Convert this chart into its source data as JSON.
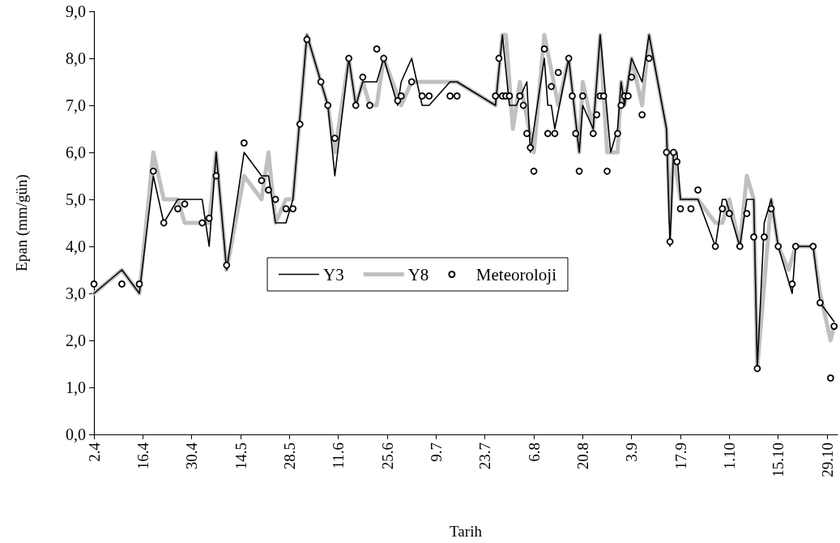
{
  "chart_data": {
    "type": "line",
    "xlabel": "Tarih",
    "ylabel": "Epan (mm/gün)",
    "xlim": [
      "--04-02",
      "--11-01"
    ],
    "xticks": [
      {
        "value": "--04-02",
        "label": "2.4"
      },
      {
        "value": "--04-16",
        "label": "16.4"
      },
      {
        "value": "--04-30",
        "label": "30.4"
      },
      {
        "value": "--05-14",
        "label": "14.5"
      },
      {
        "value": "--05-28",
        "label": "28.5"
      },
      {
        "value": "--06-11",
        "label": "11.6"
      },
      {
        "value": "--06-25",
        "label": "25.6"
      },
      {
        "value": "--07-09",
        "label": "9.7"
      },
      {
        "value": "--07-23",
        "label": "23.7"
      },
      {
        "value": "--08-06",
        "label": "6.8"
      },
      {
        "value": "--08-20",
        "label": "20.8"
      },
      {
        "value": "--09-03",
        "label": "3.9"
      },
      {
        "value": "--09-17",
        "label": "17.9"
      },
      {
        "value": "--10-01",
        "label": "1.10"
      },
      {
        "value": "--10-15",
        "label": "15.10"
      },
      {
        "value": "--10-29",
        "label": "29.10"
      }
    ],
    "ylim": [
      0,
      9
    ],
    "yticks": [
      {
        "value": 0,
        "label": "0,0"
      },
      {
        "value": 1,
        "label": "1,0"
      },
      {
        "value": 2,
        "label": "2,0"
      },
      {
        "value": 3,
        "label": "3,0"
      },
      {
        "value": 4,
        "label": "4,0"
      },
      {
        "value": 5,
        "label": "5,0"
      },
      {
        "value": 6,
        "label": "6,0"
      },
      {
        "value": 7,
        "label": "7,0"
      },
      {
        "value": 8,
        "label": "8,0"
      },
      {
        "value": 9,
        "label": "9,0"
      }
    ],
    "grid": false,
    "legend": "center",
    "series": [
      {
        "name": "Y3",
        "color": "#000000",
        "x": [
          "--04-02",
          "--04-10",
          "--04-15",
          "--04-19",
          "--04-22",
          "--04-26",
          "--05-03",
          "--05-05",
          "--05-07",
          "--05-10",
          "--05-15",
          "--05-20",
          "--05-22",
          "--05-24",
          "--05-27",
          "--05-29",
          "--06-02",
          "--06-06",
          "--06-08",
          "--06-10",
          "--06-14",
          "--06-16",
          "--06-18",
          "--06-22",
          "--06-24",
          "--06-28",
          "--06-29",
          "--07-02",
          "--07-05",
          "--07-07",
          "--07-13",
          "--07-15",
          "--07-26",
          "--07-28",
          "--07-30",
          "--08-01",
          "--08-04",
          "--08-05",
          "--08-09",
          "--08-10",
          "--08-11",
          "--08-12",
          "--08-16",
          "--08-19",
          "--08-20",
          "--08-23",
          "--08-25",
          "--08-28",
          "--08-30",
          "--08-31",
          "--09-01",
          "--09-03",
          "--09-06",
          "--09-08",
          "--09-13",
          "--09-14",
          "--09-15",
          "--09-16",
          "--09-17",
          "--09-22",
          "--09-27",
          "--09-29",
          "--09-30",
          "--10-04",
          "--10-06",
          "--10-08",
          "--10-09",
          "--10-11",
          "--10-13",
          "--10-15",
          "--10-19",
          "--10-20",
          "--10-25",
          "--10-27",
          "--10-31"
        ],
        "values": [
          3.0,
          3.5,
          3.0,
          5.5,
          4.5,
          5.0,
          5.0,
          4.0,
          6.0,
          3.5,
          6.0,
          5.5,
          5.5,
          4.5,
          4.5,
          5.0,
          8.5,
          7.5,
          7.0,
          5.5,
          8.0,
          7.0,
          7.5,
          7.5,
          8.0,
          7.0,
          7.5,
          8.0,
          7.0,
          7.0,
          7.5,
          7.5,
          7.0,
          8.5,
          7.0,
          7.0,
          7.5,
          6.0,
          8.0,
          7.0,
          7.0,
          6.5,
          8.0,
          6.0,
          7.0,
          6.5,
          8.5,
          6.0,
          6.5,
          7.5,
          7.0,
          8.0,
          7.5,
          8.5,
          6.5,
          4.0,
          6.0,
          6.0,
          5.0,
          5.0,
          4.0,
          5.0,
          5.0,
          4.0,
          5.0,
          5.0,
          1.4,
          4.5,
          5.0,
          4.0,
          3.0,
          4.0,
          4.0,
          2.8,
          2.4
        ]
      },
      {
        "name": "Y8",
        "color": "#c0c0c0",
        "x": [
          "--04-02",
          "--04-10",
          "--04-15",
          "--04-19",
          "--04-22",
          "--04-26",
          "--04-28",
          "--05-03",
          "--05-05",
          "--05-07",
          "--05-10",
          "--05-15",
          "--05-20",
          "--05-22",
          "--05-24",
          "--05-27",
          "--05-29",
          "--06-02",
          "--06-06",
          "--06-08",
          "--06-10",
          "--06-14",
          "--06-16",
          "--06-18",
          "--06-20",
          "--06-22",
          "--06-24",
          "--06-29",
          "--07-02",
          "--07-15",
          "--07-26",
          "--07-28",
          "--07-29",
          "--07-31",
          "--08-02",
          "--08-06",
          "--08-09",
          "--08-13",
          "--08-16",
          "--08-19",
          "--08-20",
          "--08-23",
          "--08-25",
          "--08-27",
          "--08-30",
          "--08-31",
          "--09-01",
          "--09-03",
          "--09-06",
          "--09-08",
          "--09-13",
          "--09-14",
          "--09-15",
          "--09-17",
          "--09-22",
          "--09-27",
          "--09-29",
          "--10-01",
          "--10-04",
          "--10-06",
          "--10-08",
          "--10-09",
          "--10-13",
          "--10-15",
          "--10-18",
          "--10-20",
          "--10-25",
          "--10-27",
          "--10-30",
          "--10-31"
        ],
        "values": [
          3.0,
          3.5,
          3.0,
          6.0,
          5.0,
          5.0,
          4.5,
          4.5,
          4.5,
          6.0,
          3.5,
          5.5,
          5.0,
          6.0,
          4.5,
          5.0,
          5.0,
          8.5,
          7.5,
          7.0,
          6.0,
          8.0,
          7.0,
          7.5,
          7.0,
          7.0,
          8.0,
          7.0,
          7.5,
          7.5,
          7.0,
          8.5,
          8.5,
          6.5,
          7.5,
          6.0,
          8.5,
          7.0,
          8.0,
          6.0,
          7.5,
          6.5,
          8.5,
          6.0,
          6.0,
          7.5,
          7.0,
          8.0,
          7.0,
          8.5,
          6.5,
          4.5,
          6.0,
          5.0,
          5.0,
          4.5,
          4.5,
          5.0,
          4.0,
          5.5,
          5.0,
          1.4,
          5.0,
          4.0,
          3.5,
          4.0,
          4.0,
          3.0,
          2.0,
          2.3
        ]
      },
      {
        "name": "Meteoroloji",
        "type": "scatter",
        "marker": "circle",
        "color": "#000000",
        "x": [
          "--04-02",
          "--04-10",
          "--04-15",
          "--04-19",
          "--04-22",
          "--04-26",
          "--04-28",
          "--05-03",
          "--05-05",
          "--05-07",
          "--05-10",
          "--05-15",
          "--05-20",
          "--05-22",
          "--05-24",
          "--05-27",
          "--05-29",
          "--05-31",
          "--06-02",
          "--06-06",
          "--06-08",
          "--06-10",
          "--06-14",
          "--06-16",
          "--06-18",
          "--06-20",
          "--06-22",
          "--06-24",
          "--06-28",
          "--06-29",
          "--07-02",
          "--07-05",
          "--07-07",
          "--07-13",
          "--07-15",
          "--07-26",
          "--07-27",
          "--07-28",
          "--07-29",
          "--07-30",
          "--08-02",
          "--08-03",
          "--08-04",
          "--08-05",
          "--08-06",
          "--08-09",
          "--08-10",
          "--08-11",
          "--08-12",
          "--08-13",
          "--08-16",
          "--08-17",
          "--08-18",
          "--08-19",
          "--08-20",
          "--08-23",
          "--08-24",
          "--08-25",
          "--08-26",
          "--08-27",
          "--08-30",
          "--08-31",
          "--09-01",
          "--09-02",
          "--09-03",
          "--09-06",
          "--09-08",
          "--09-13",
          "--09-14",
          "--09-15",
          "--09-16",
          "--09-17",
          "--09-20",
          "--09-22",
          "--09-27",
          "--09-29",
          "--10-01",
          "--10-04",
          "--10-06",
          "--10-08",
          "--10-09",
          "--10-11",
          "--10-13",
          "--10-15",
          "--10-19",
          "--10-20",
          "--10-25",
          "--10-27",
          "--10-30",
          "--10-31"
        ],
        "values": [
          3.2,
          3.2,
          3.2,
          5.6,
          4.5,
          4.8,
          4.9,
          4.5,
          4.6,
          5.5,
          3.6,
          6.2,
          5.4,
          5.2,
          5.0,
          4.8,
          4.8,
          6.6,
          8.4,
          7.5,
          7.0,
          6.3,
          8.0,
          7.0,
          7.6,
          7.0,
          8.2,
          8.0,
          7.1,
          7.2,
          7.5,
          7.2,
          7.2,
          7.2,
          7.2,
          7.2,
          8.0,
          7.2,
          7.2,
          7.2,
          7.2,
          7.0,
          6.4,
          6.1,
          5.6,
          8.2,
          6.4,
          7.4,
          6.4,
          7.7,
          8.0,
          7.2,
          6.4,
          5.6,
          7.2,
          6.4,
          6.8,
          7.2,
          7.2,
          5.6,
          6.4,
          7.0,
          7.2,
          7.2,
          7.6,
          6.8,
          8.0,
          6.0,
          4.1,
          6.0,
          5.8,
          4.8,
          4.8,
          5.2,
          4.0,
          4.8,
          4.7,
          4.0,
          4.7,
          4.2,
          1.4,
          4.2,
          4.8,
          4.0,
          3.2,
          4.0,
          4.0,
          2.8,
          1.2,
          2.3
        ]
      }
    ]
  }
}
